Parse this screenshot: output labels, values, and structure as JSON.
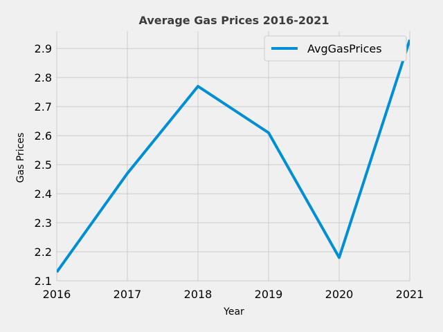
{
  "chart_data": {
    "type": "line",
    "title": "Average Gas Prices 2016-2021",
    "xlabel": "Year",
    "ylabel": "Gas Prices",
    "x": [
      2016,
      2017,
      2018,
      2019,
      2020,
      2021
    ],
    "x_tick_labels": [
      "2016",
      "2017",
      "2018",
      "2019",
      "2020",
      "2021"
    ],
    "xlim": [
      2016,
      2021
    ],
    "ylim": [
      2.1,
      2.96
    ],
    "y_ticks": [
      2.1,
      2.2,
      2.3,
      2.4,
      2.5,
      2.6,
      2.7,
      2.8,
      2.9
    ],
    "y_tick_labels": [
      "2.1",
      "2.2",
      "2.3",
      "2.4",
      "2.5",
      "2.6",
      "2.7",
      "2.8",
      "2.9"
    ],
    "series": [
      {
        "name": "AvgGasPrices",
        "values": [
          2.13,
          2.47,
          2.77,
          2.61,
          2.18,
          2.93
        ],
        "color": "#008fd5"
      }
    ],
    "grid": true,
    "legend_position": "top-right",
    "background_color": "#f0f0f0",
    "grid_color": "#cbcbcb"
  }
}
